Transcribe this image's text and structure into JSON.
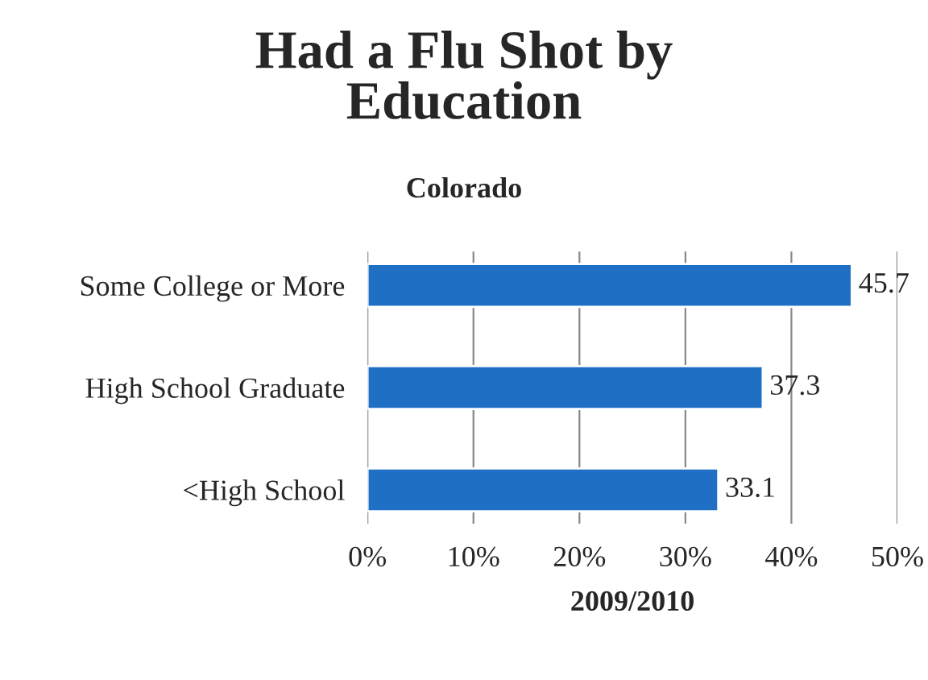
{
  "chart_data": {
    "type": "bar",
    "orientation": "horizontal",
    "title": "Had a Flu Shot by\nEducation",
    "subtitle": "Colorado",
    "xlabel": "2009/2010",
    "categories": [
      "Some College or More",
      "High School Graduate",
      "<High School"
    ],
    "values": [
      45.7,
      37.3,
      33.1
    ],
    "color": "#1f6fc5",
    "xlim": [
      0,
      50
    ],
    "xticks": [
      {
        "value": 0,
        "label": "0%"
      },
      {
        "value": 10,
        "label": "10%"
      },
      {
        "value": 20,
        "label": "20%"
      },
      {
        "value": 30,
        "label": "30%"
      },
      {
        "value": 40,
        "label": "40%"
      },
      {
        "value": 50,
        "label": "50%"
      }
    ],
    "grid": "x",
    "data_labels": true
  }
}
